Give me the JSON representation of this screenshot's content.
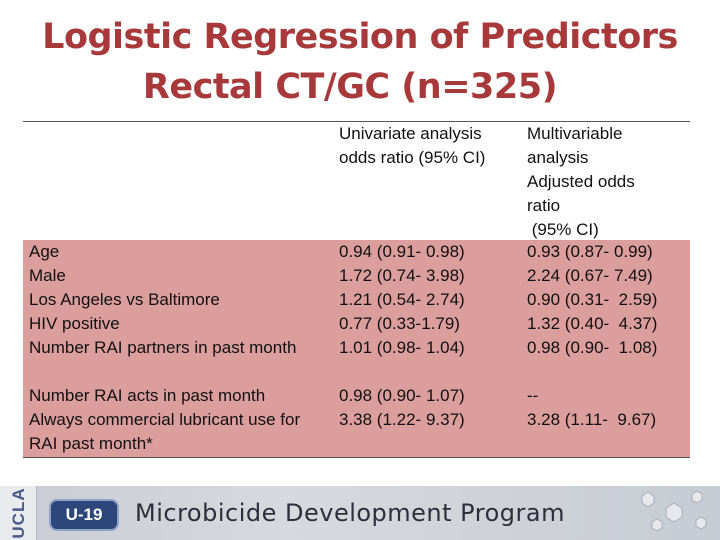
{
  "title": {
    "line1": "Logistic Regression of Predictors",
    "line2": "Rectal CT/GC (n=325)"
  },
  "table": {
    "headers": {
      "univariate": [
        "Univariate analysis",
        "odds ratio (95% CI)"
      ],
      "multivariable": [
        "Multivariable",
        "analysis",
        "Adjusted odds",
        "ratio",
        " (95% CI)"
      ]
    },
    "rows": [
      {
        "label": "Age",
        "univariate": "0.94 (0.91- 0.98)",
        "multivariable": "0.93 (0.87- 0.99)"
      },
      {
        "label": "Male",
        "univariate": "1.72 (0.74- 3.98)",
        "multivariable": "2.24 (0.67- 7.49)"
      },
      {
        "label": "Los Angeles vs Baltimore",
        "univariate": "1.21 (0.54- 2.74)",
        "multivariable": "0.90 (0.31-  2.59)"
      },
      {
        "label": "HIV positive",
        "univariate": "0.77 (0.33-1.79)",
        "multivariable": "1.32 (0.40-  4.37)"
      },
      {
        "label": "Number RAI partners in past month",
        "univariate": "1.01 (0.98- 1.04)",
        "multivariable": "0.98 (0.90-  1.08)"
      },
      {
        "label": "Number RAI acts in past month",
        "univariate": "0.98 (0.90- 1.07)",
        "multivariable": "--"
      },
      {
        "label": "Always commercial lubricant use for RAI past month*",
        "univariate": "3.38 (1.22- 9.37)",
        "multivariable": "3.28 (1.11-  9.67)"
      }
    ]
  },
  "footer": {
    "institution": "UCLA",
    "badge": "U-19",
    "program": "Microbicide Development Program"
  },
  "colors": {
    "title": "#a8393b",
    "row_band": "#dc9d9d",
    "badge": "#2d477a"
  }
}
